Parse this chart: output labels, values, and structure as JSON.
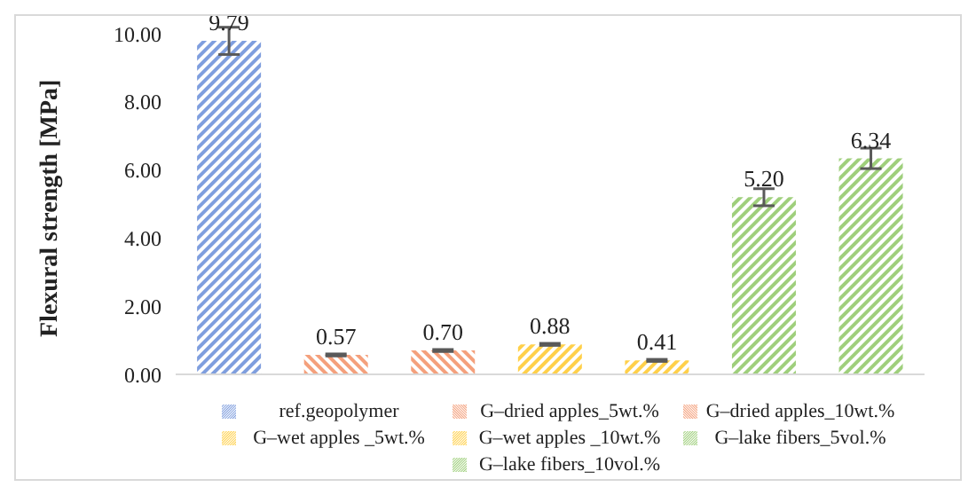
{
  "chart_data": {
    "type": "bar",
    "ylabel": "Flexural strength [MPa]",
    "categories": [
      null,
      null,
      null,
      null,
      null,
      null,
      null
    ],
    "series": [
      {
        "name": "ref.geopolymer",
        "color": "#7f9ede",
        "values": [
          9.79,
          null,
          null,
          null,
          null,
          null,
          null
        ],
        "errors": [
          0.4,
          null,
          null,
          null,
          null,
          null,
          null
        ],
        "value_labels": [
          "9.79",
          null,
          null,
          null,
          null,
          null,
          null
        ]
      },
      {
        "name": "G–dried apples_5wt.%",
        "color": "#f4a07c",
        "values": [
          null,
          0.57,
          null,
          null,
          null,
          null,
          null
        ],
        "errors": [
          null,
          0.03,
          null,
          null,
          null,
          null,
          null
        ],
        "value_labels": [
          null,
          "0.57",
          null,
          null,
          null,
          null,
          null
        ]
      },
      {
        "name": "G–dried apples_10wt.%",
        "color": "#f4a07c",
        "values": [
          null,
          null,
          0.7,
          null,
          null,
          null,
          null
        ],
        "errors": [
          null,
          null,
          0.03,
          null,
          null,
          null,
          null
        ],
        "value_labels": [
          null,
          null,
          "0.70",
          null,
          null,
          null,
          null
        ]
      },
      {
        "name": "G–wet apples _5wt.%",
        "color": "#ffd04a",
        "values": [
          null,
          null,
          null,
          0.88,
          null,
          null,
          null
        ],
        "errors": [
          null,
          null,
          null,
          0.03,
          null,
          null,
          null
        ],
        "value_labels": [
          null,
          null,
          null,
          "0.88",
          null,
          null,
          null
        ]
      },
      {
        "name": "G–wet apples _10wt.%",
        "color": "#ffd04a",
        "values": [
          null,
          null,
          null,
          null,
          0.41,
          null,
          null
        ],
        "errors": [
          null,
          null,
          null,
          null,
          0.03,
          null,
          null
        ],
        "value_labels": [
          null,
          null,
          null,
          null,
          "0.41",
          null,
          null
        ]
      },
      {
        "name": "G–lake fibers_5vol.%",
        "color": "#9fcf7c",
        "values": [
          null,
          null,
          null,
          null,
          null,
          5.2,
          null
        ],
        "errors": [
          null,
          null,
          null,
          null,
          null,
          0.25,
          null
        ],
        "value_labels": [
          null,
          null,
          null,
          null,
          null,
          "5.20",
          null
        ]
      },
      {
        "name": "G–lake fibers_10vol.%",
        "color": "#9fcf7c",
        "values": [
          null,
          null,
          null,
          null,
          null,
          null,
          6.34
        ],
        "errors": [
          null,
          null,
          null,
          null,
          null,
          null,
          0.3
        ],
        "value_labels": [
          null,
          null,
          null,
          null,
          null,
          null,
          "6.34"
        ]
      }
    ],
    "ylim": [
      0,
      10
    ],
    "yticks": [
      {
        "value": 0,
        "label": "0.00"
      },
      {
        "value": 2,
        "label": "2.00"
      },
      {
        "value": 4,
        "label": "4.00"
      },
      {
        "value": 6,
        "label": "6.00"
      },
      {
        "value": 8,
        "label": "8.00"
      },
      {
        "value": 10,
        "label": "10.00"
      }
    ],
    "tick_labels": "y",
    "grid": false,
    "legend": "bottom"
  }
}
